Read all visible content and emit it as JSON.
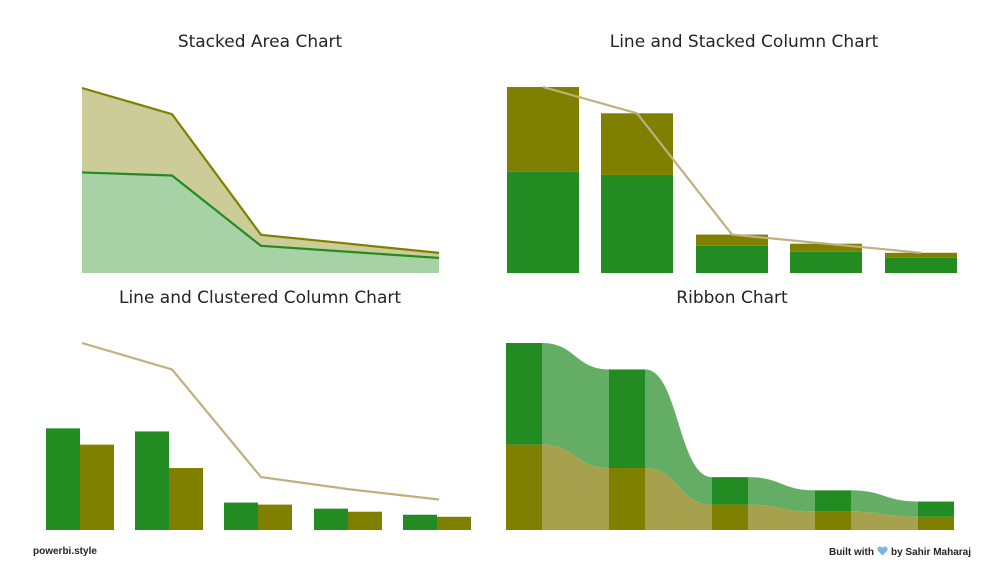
{
  "colors": {
    "green": "#228b22",
    "olive": "#808000",
    "tan": "#c0b080",
    "greenArea": "#a6d2a6",
    "oliveArea": "#cccc99",
    "greenRibbon": "#64ad64",
    "oliveRibbon": "#a7a04c",
    "heart": "#7ab7e0"
  },
  "footer": {
    "left": "powerbi.style",
    "built_with": "Built with",
    "by": "by Sahir Maharaj"
  },
  "chart_data": [
    {
      "type": "area",
      "title": "Stacked Area Chart",
      "stacked": true,
      "x": [
        1,
        2,
        3,
        4,
        5
      ],
      "series": [
        {
          "color": "green",
          "values": [
            100,
            97,
            27,
            21,
            15
          ]
        },
        {
          "color": "olive",
          "values": [
            84,
            61,
            11,
            8,
            5
          ]
        }
      ],
      "ylim": [
        0,
        184
      ],
      "grid": false,
      "axes_visible": false
    },
    {
      "type": "bar",
      "title": "Line and Stacked Column Chart",
      "stacked": true,
      "x": [
        1,
        2,
        3,
        4,
        5
      ],
      "series": [
        {
          "color": "green",
          "values": [
            100,
            97,
            27,
            21,
            15
          ]
        },
        {
          "color": "olive",
          "values": [
            84,
            61,
            11,
            8,
            5
          ]
        }
      ],
      "line": {
        "color": "tan",
        "values": [
          184,
          158,
          38,
          29,
          20
        ]
      },
      "ylim": [
        0,
        184
      ],
      "grid": false,
      "axes_visible": false
    },
    {
      "type": "bar",
      "title": "Line and Clustered Column Chart",
      "stacked": false,
      "x": [
        1,
        2,
        3,
        4,
        5
      ],
      "series": [
        {
          "color": "green",
          "values": [
            100,
            97,
            27,
            21,
            15
          ]
        },
        {
          "color": "olive",
          "values": [
            84,
            61,
            25,
            18,
            13
          ]
        }
      ],
      "line": {
        "color": "tan",
        "values": [
          184,
          158,
          52,
          40,
          30
        ]
      },
      "ylim": [
        0,
        184
      ],
      "grid": false,
      "axes_visible": false
    },
    {
      "type": "ribbon",
      "title": "Ribbon Chart",
      "x": [
        1,
        2,
        3,
        4,
        5
      ],
      "series": [
        {
          "color": "olive",
          "values": [
            84,
            61,
            25,
            18,
            13
          ]
        },
        {
          "color": "green",
          "values": [
            100,
            97,
            27,
            21,
            15
          ]
        }
      ],
      "ylim": [
        0,
        184
      ],
      "grid": false,
      "axes_visible": false
    }
  ]
}
